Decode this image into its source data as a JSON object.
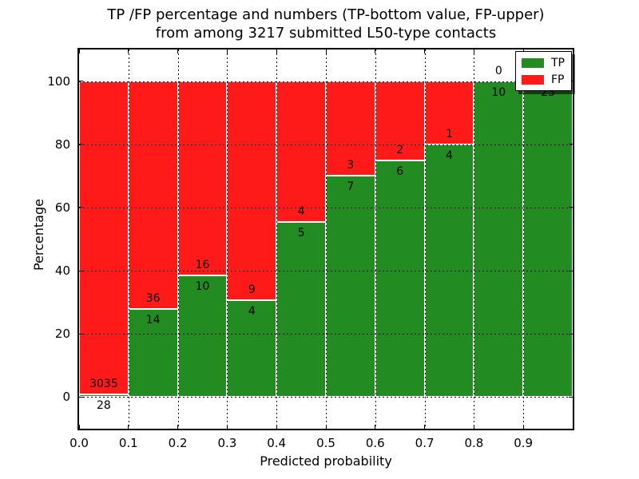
{
  "chart_data": {
    "type": "bar",
    "stacked": true,
    "normalized_to_percent": true,
    "title_line1": "TP /FP percentage and numbers (TP-bottom value, FP-upper)",
    "title_line2": "from among 3217 submitted L50-type contacts",
    "xlabel": "Predicted probability",
    "ylabel": "Percentage",
    "categories": [
      0.0,
      0.1,
      0.2,
      0.3,
      0.4,
      0.5,
      0.6,
      0.7,
      0.8,
      0.9
    ],
    "bin_width": 0.1,
    "x_tick_labels": [
      "0.0",
      "0.1",
      "0.2",
      "0.3",
      "0.4",
      "0.5",
      "0.6",
      "0.7",
      "0.8",
      "0.9"
    ],
    "y_ticks": [
      0,
      20,
      40,
      60,
      80,
      100
    ],
    "ylim": [
      -10,
      110
    ],
    "xlim": [
      0,
      1
    ],
    "grid": "dotted-black-over-bars",
    "bar_edge_color": "#ffffff",
    "series": [
      {
        "name": "TP",
        "color": "#228b22",
        "counts": [
          28,
          14,
          10,
          4,
          5,
          7,
          6,
          4,
          10,
          23
        ]
      },
      {
        "name": "FP",
        "color": "#ff1a1a",
        "counts": [
          3035,
          36,
          16,
          9,
          4,
          3,
          2,
          1,
          0,
          0
        ]
      }
    ],
    "legend_position": "upper right"
  }
}
